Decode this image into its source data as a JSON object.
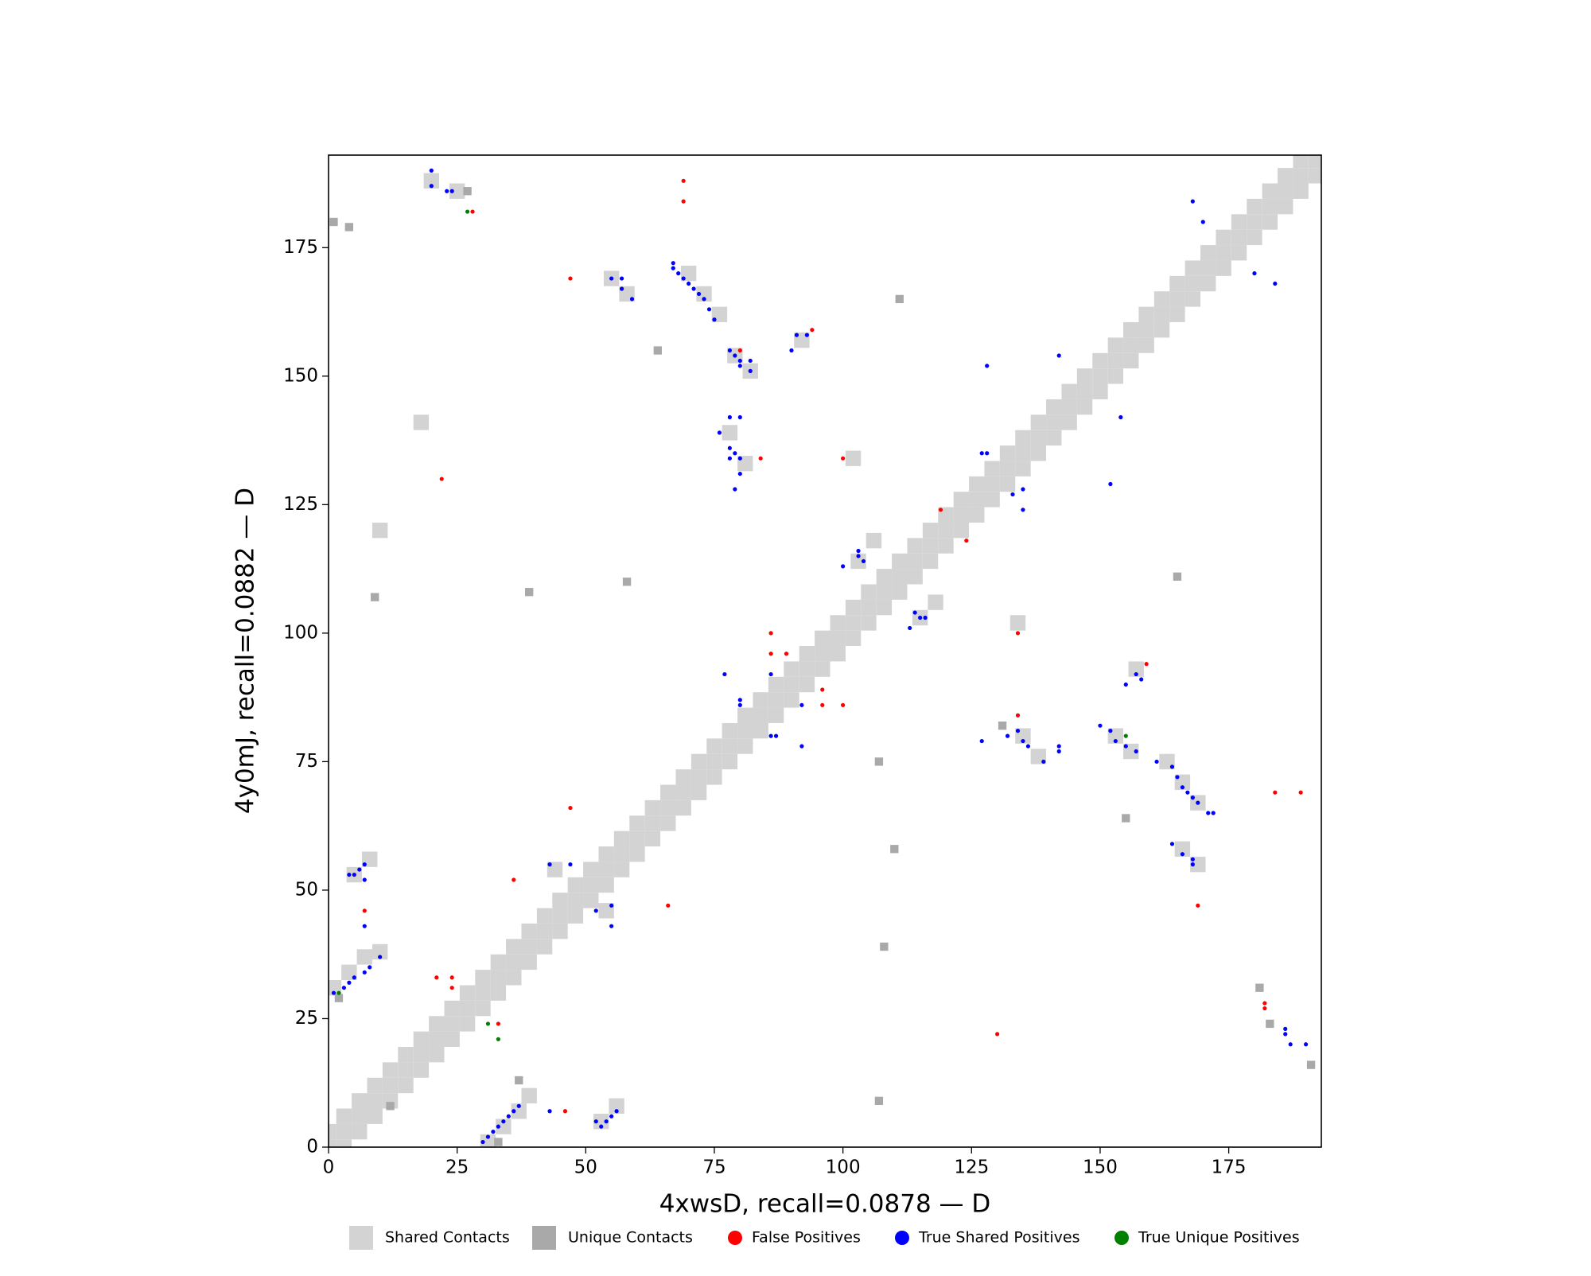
{
  "chart_data": {
    "type": "scatter",
    "xlabel": "4xwsD, recall=0.0878 — D",
    "ylabel": "4y0mJ, recall=0.0882 — D",
    "xlim": [
      0,
      193
    ],
    "ylim": [
      0,
      193
    ],
    "xticks": [
      0,
      25,
      50,
      75,
      100,
      125,
      150,
      175
    ],
    "yticks": [
      0,
      25,
      50,
      75,
      100,
      125,
      150,
      175
    ],
    "grid": false,
    "legend": "bottom",
    "series": [
      {
        "name": "Shared Contacts",
        "color": "#d3d3d3",
        "marker": "square",
        "x": [
          0,
          0,
          3,
          3,
          3,
          6,
          6,
          6,
          9,
          9,
          9,
          12,
          12,
          12,
          15,
          15,
          15,
          18,
          18,
          18,
          21,
          21,
          21,
          24,
          24,
          24,
          27,
          27,
          27,
          30,
          30,
          30,
          33,
          33,
          33,
          36,
          36,
          36,
          39,
          39,
          39,
          42,
          42,
          42,
          45,
          45,
          45,
          48,
          48,
          48,
          51,
          51,
          51,
          54,
          54,
          54,
          57,
          57,
          57,
          60,
          60,
          60,
          63,
          63,
          63,
          66,
          66,
          66,
          69,
          69,
          69,
          72,
          72,
          72,
          75,
          75,
          75,
          78,
          78,
          78,
          81,
          81,
          81,
          84,
          84,
          84,
          87,
          87,
          87,
          90,
          90,
          90,
          93,
          93,
          93,
          96,
          96,
          96,
          99,
          99,
          99,
          102,
          102,
          102,
          105,
          105,
          105,
          108,
          108,
          108,
          111,
          111,
          111,
          114,
          114,
          114,
          117,
          117,
          117,
          120,
          120,
          120,
          123,
          123,
          123,
          126,
          126,
          126,
          129,
          129,
          129,
          132,
          132,
          132,
          135,
          135,
          135,
          138,
          138,
          138,
          141,
          141,
          141,
          144,
          144,
          144,
          147,
          147,
          147,
          150,
          150,
          150,
          153,
          153,
          153,
          156,
          156,
          156,
          159,
          159,
          159,
          162,
          162,
          162,
          165,
          165,
          165,
          168,
          168,
          168,
          171,
          171,
          171,
          174,
          174,
          174,
          177,
          177,
          177,
          180,
          180,
          180,
          183,
          183,
          183,
          186,
          186,
          186,
          189,
          189,
          189,
          192,
          192,
          31,
          34,
          37,
          39,
          53,
          56,
          1,
          4,
          7,
          10,
          5,
          8,
          44,
          54,
          70,
          73,
          76,
          79,
          82,
          55,
          58,
          78,
          81,
          92,
          103,
          106,
          115,
          118,
          135,
          138,
          153,
          156,
          163,
          166,
          169,
          166,
          169,
          157,
          102,
          134,
          20,
          25,
          10,
          18
        ],
        "values": [
          0,
          3,
          0,
          3,
          6,
          3,
          6,
          9,
          6,
          9,
          12,
          9,
          12,
          15,
          12,
          15,
          18,
          15,
          18,
          21,
          18,
          21,
          24,
          21,
          24,
          27,
          24,
          27,
          30,
          27,
          30,
          33,
          30,
          33,
          36,
          33,
          36,
          39,
          36,
          39,
          42,
          39,
          42,
          45,
          42,
          45,
          48,
          45,
          48,
          51,
          48,
          51,
          54,
          51,
          54,
          57,
          54,
          57,
          60,
          57,
          60,
          63,
          60,
          63,
          66,
          63,
          66,
          69,
          66,
          69,
          72,
          69,
          72,
          75,
          72,
          75,
          78,
          75,
          78,
          81,
          78,
          81,
          84,
          81,
          84,
          87,
          84,
          87,
          90,
          87,
          90,
          93,
          90,
          93,
          96,
          93,
          96,
          99,
          96,
          99,
          102,
          99,
          102,
          105,
          102,
          105,
          108,
          105,
          108,
          111,
          108,
          111,
          114,
          111,
          114,
          117,
          114,
          117,
          120,
          117,
          120,
          123,
          120,
          123,
          126,
          123,
          126,
          129,
          126,
          129,
          132,
          129,
          132,
          135,
          132,
          135,
          138,
          135,
          138,
          141,
          138,
          141,
          144,
          141,
          144,
          147,
          144,
          147,
          150,
          147,
          150,
          153,
          150,
          153,
          156,
          153,
          156,
          159,
          156,
          159,
          162,
          159,
          162,
          165,
          162,
          165,
          168,
          165,
          168,
          171,
          168,
          171,
          174,
          171,
          174,
          177,
          174,
          177,
          180,
          177,
          180,
          183,
          180,
          183,
          186,
          183,
          186,
          189,
          186,
          189,
          192,
          189,
          192,
          1,
          4,
          7,
          10,
          5,
          8,
          31,
          34,
          37,
          38,
          53,
          56,
          54,
          46,
          170,
          166,
          162,
          154,
          151,
          169,
          166,
          139,
          133,
          157,
          114,
          118,
          103,
          106,
          80,
          76,
          80,
          77,
          75,
          71,
          67,
          58,
          55,
          93,
          134,
          102,
          188,
          186,
          120,
          141
        ]
      },
      {
        "name": "Unique Contacts",
        "color": "#a9a9a9",
        "marker": "square",
        "x": [
          2,
          33,
          37,
          12,
          39,
          108,
          58,
          110,
          165,
          111,
          27,
          107,
          9,
          155,
          64,
          1,
          4,
          183,
          191,
          131,
          107,
          181
        ],
        "values": [
          29,
          1,
          13,
          8,
          108,
          39,
          110,
          58,
          111,
          165,
          186,
          9,
          107,
          64,
          155,
          180,
          179,
          24,
          16,
          82,
          75,
          31
        ]
      },
      {
        "name": "False Positives",
        "color": "#ff0000",
        "marker": "circle",
        "x": [
          22,
          69,
          69,
          47,
          94,
          80,
          84,
          100,
          119,
          124,
          86,
          86,
          89,
          96,
          96,
          100,
          134,
          134,
          159,
          47,
          36,
          7,
          21,
          24,
          24,
          33,
          46,
          130,
          66,
          182,
          182,
          184,
          189,
          169,
          28
        ],
        "values": [
          130,
          188,
          184,
          169,
          159,
          155,
          134,
          134,
          124,
          118,
          100,
          96,
          96,
          89,
          86,
          86,
          100,
          84,
          94,
          66,
          52,
          46,
          33,
          33,
          31,
          24,
          7,
          22,
          47,
          28,
          27,
          69,
          69,
          47,
          182
        ]
      },
      {
        "name": "True Shared Positives",
        "color": "#0000ff",
        "marker": "circle",
        "x": [
          20,
          23,
          24,
          20,
          67,
          67,
          68,
          69,
          70,
          71,
          72,
          73,
          74,
          75,
          55,
          57,
          57,
          59,
          78,
          79,
          80,
          82,
          80,
          82,
          90,
          91,
          93,
          78,
          80,
          76,
          78,
          79,
          78,
          80,
          80,
          79,
          77,
          80,
          80,
          86,
          86,
          87,
          92,
          92,
          100,
          103,
          103,
          104,
          113,
          114,
          115,
          116,
          128,
          127,
          128,
          133,
          135,
          135,
          142,
          154,
          152,
          168,
          170,
          180,
          184,
          127,
          132,
          134,
          135,
          136,
          139,
          142,
          142,
          150,
          152,
          153,
          155,
          157,
          161,
          164,
          165,
          166,
          167,
          168,
          169,
          171,
          172,
          164,
          166,
          168,
          168,
          157,
          158,
          155,
          5,
          6,
          7,
          7,
          4,
          7,
          3,
          4,
          5,
          7,
          8,
          10,
          1,
          30,
          31,
          32,
          33,
          34,
          35,
          36,
          37,
          52,
          53,
          54,
          55,
          56,
          43,
          52,
          55,
          55,
          43,
          47,
          186,
          186,
          187,
          190
        ],
        "values": [
          190,
          186,
          186,
          187,
          172,
          171,
          170,
          169,
          168,
          167,
          166,
          165,
          163,
          161,
          169,
          169,
          167,
          165,
          155,
          154,
          153,
          153,
          152,
          151,
          155,
          158,
          158,
          142,
          142,
          139,
          136,
          135,
          134,
          134,
          131,
          128,
          92,
          87,
          86,
          92,
          80,
          80,
          86,
          78,
          113,
          116,
          115,
          114,
          101,
          104,
          103,
          103,
          152,
          135,
          135,
          127,
          128,
          124,
          154,
          142,
          129,
          184,
          180,
          170,
          168,
          79,
          80,
          81,
          79,
          78,
          75,
          78,
          77,
          82,
          81,
          79,
          78,
          77,
          75,
          74,
          72,
          70,
          69,
          68,
          67,
          65,
          65,
          59,
          57,
          56,
          55,
          92,
          91,
          90,
          53,
          54,
          55,
          52,
          53,
          43,
          31,
          32,
          33,
          34,
          35,
          37,
          30,
          1,
          2,
          3,
          4,
          5,
          6,
          7,
          8,
          5,
          4,
          5,
          6,
          7,
          7,
          46,
          43,
          47,
          55,
          55,
          23,
          22,
          20,
          20
        ]
      },
      {
        "name": "True Unique Positives",
        "color": "#008000",
        "marker": "circle",
        "x": [
          27,
          2,
          155,
          31,
          33
        ],
        "values": [
          182,
          30,
          80,
          24,
          21
        ]
      }
    ]
  }
}
